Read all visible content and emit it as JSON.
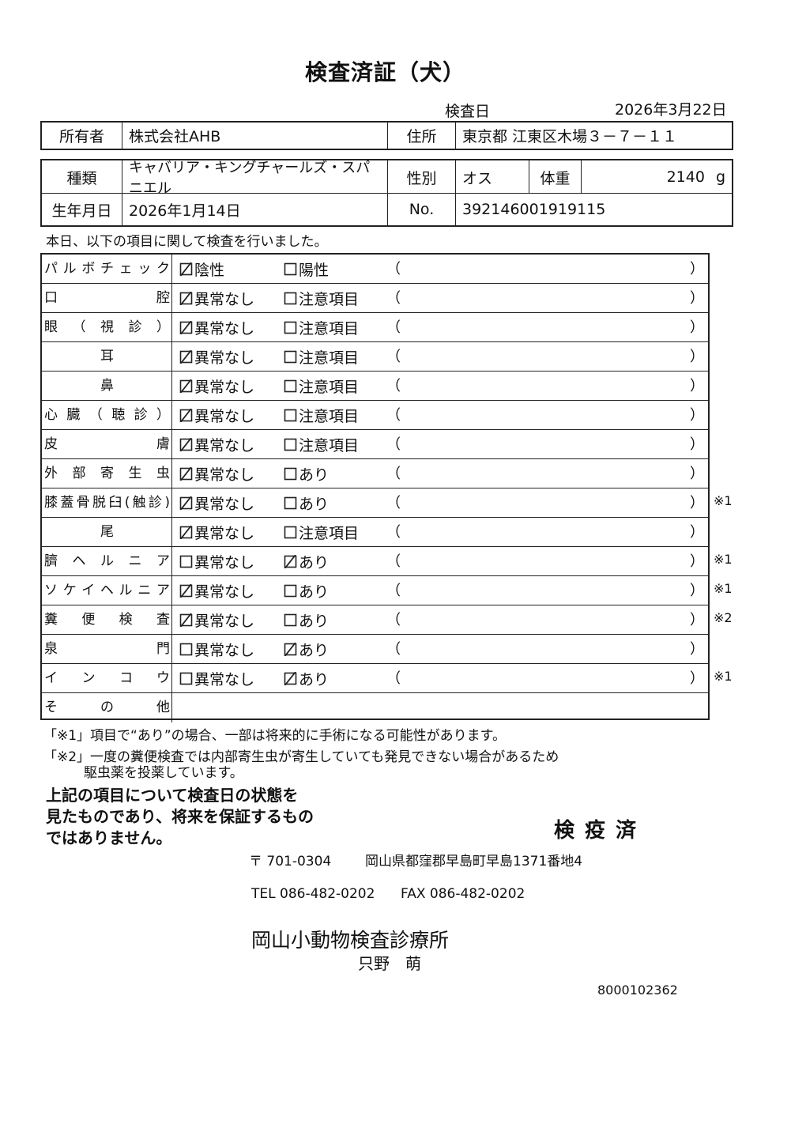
{
  "title": "検査済証（犬）",
  "exam_date_label": "検査日",
  "exam_date": "2026年3月22日",
  "owner": {
    "label": "所有者",
    "value": "株式会社AHB"
  },
  "address": {
    "label": "住所",
    "value": "東京都 江東区木場３－７－１１"
  },
  "breed": {
    "label": "種類",
    "value": "キャバリア・キングチャールズ・スパニエル"
  },
  "sex": {
    "label": "性別",
    "value": "オス"
  },
  "weight": {
    "label": "体重",
    "value": "2140",
    "unit": "g"
  },
  "birth": {
    "label": "生年月日",
    "value": "2026年1月14日"
  },
  "number": {
    "label": "No.",
    "value": "392146001919115"
  },
  "intro": "本日、以下の項目に関して検査を行いました。",
  "checks": [
    {
      "label": "パルボチェック",
      "opt1": "陰性",
      "opt2": "陽性",
      "checked": 1,
      "note": ""
    },
    {
      "label": "口腔",
      "opt1": "異常なし",
      "opt2": "注意項目",
      "checked": 1,
      "note": ""
    },
    {
      "label": "眼（視診）",
      "opt1": "異常なし",
      "opt2": "注意項目",
      "checked": 1,
      "note": ""
    },
    {
      "label": "耳",
      "opt1": "異常なし",
      "opt2": "注意項目",
      "checked": 1,
      "note": "",
      "center": true
    },
    {
      "label": "鼻",
      "opt1": "異常なし",
      "opt2": "注意項目",
      "checked": 1,
      "note": "",
      "center": true
    },
    {
      "label": "心臓（聴診）",
      "opt1": "異常なし",
      "opt2": "注意項目",
      "checked": 1,
      "note": ""
    },
    {
      "label": "皮膚",
      "opt1": "異常なし",
      "opt2": "注意項目",
      "checked": 1,
      "note": ""
    },
    {
      "label": "外部寄生虫",
      "opt1": "異常なし",
      "opt2": "あり",
      "checked": 1,
      "note": ""
    },
    {
      "label": "膝蓋骨脱臼(触診)",
      "opt1": "異常なし",
      "opt2": "あり",
      "checked": 1,
      "note": "※1"
    },
    {
      "label": "尾",
      "opt1": "異常なし",
      "opt2": "注意項目",
      "checked": 1,
      "note": "",
      "center": true
    },
    {
      "label": "臍ヘルニア",
      "opt1": "異常なし",
      "opt2": "あり",
      "checked": 2,
      "note": "※1"
    },
    {
      "label": "ソケイヘルニア",
      "opt1": "異常なし",
      "opt2": "あり",
      "checked": 1,
      "note": "※1"
    },
    {
      "label": "糞便検査",
      "opt1": "異常なし",
      "opt2": "あり",
      "checked": 1,
      "note": "※2"
    },
    {
      "label": "泉門",
      "opt1": "異常なし",
      "opt2": "あり",
      "checked": 2,
      "note": ""
    },
    {
      "label": "インコウ",
      "opt1": "異常なし",
      "opt2": "あり",
      "checked": 2,
      "note": "※1"
    },
    {
      "label": "その他"
    }
  ],
  "paren_open": "（",
  "paren_close": "）",
  "footnote1": "「※1」項目で“あり”の場合、一部は将来的に手術になる可能性があります。",
  "footnote2_line1": "「※2」一度の糞便検査では内部寄生虫が寄生していても発見できない場合があるため",
  "footnote2_line2": "駆虫薬を投薬しています。",
  "disclaimer": [
    "上記の項目について検査日の状態を",
    "見たものであり、将来を保証するもの",
    "ではありません。"
  ],
  "stamp": "検 疫 済",
  "clinic": {
    "postal": "〒 701-0304",
    "address": "岡山県都窪郡早島町早島1371番地4",
    "tel": "TEL 086-482-0202",
    "fax": "FAX 086-482-0202",
    "name": "岡山小動物検査診療所",
    "vet": "只野　萌"
  },
  "doc_number": "8000102362"
}
